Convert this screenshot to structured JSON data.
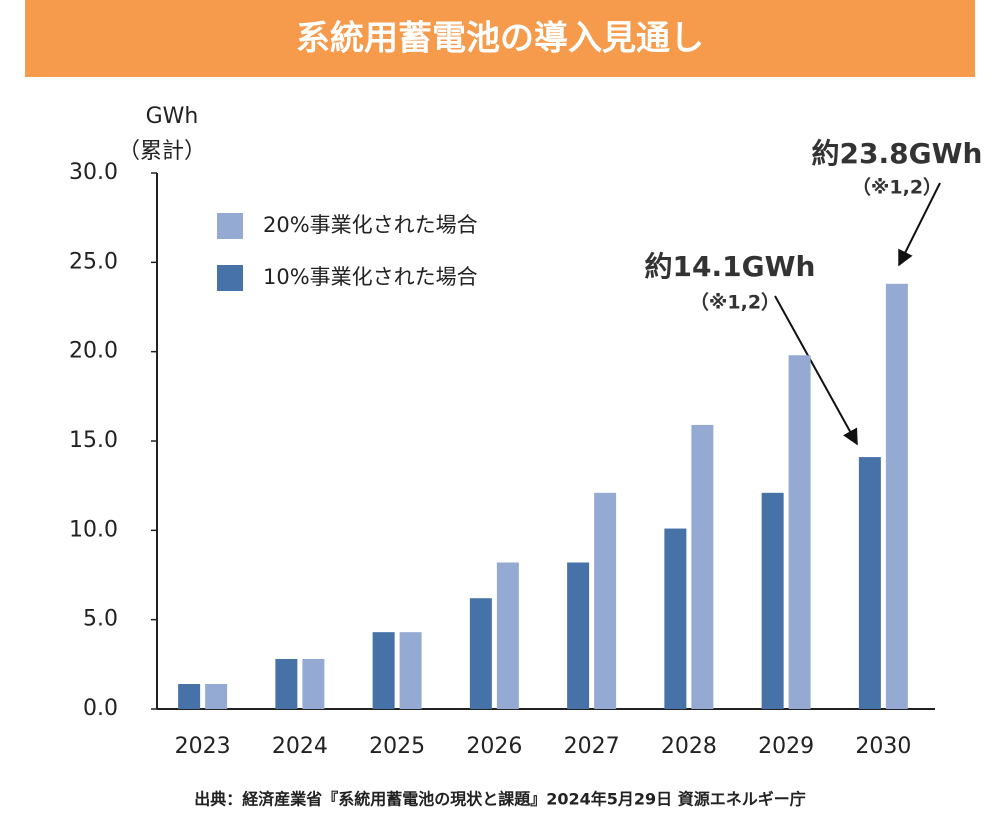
{
  "chart_data": {
    "type": "bar",
    "title": "系統用蓄電池の導入見通し",
    "y_axis_label": [
      "GWh",
      "（累計）"
    ],
    "categories": [
      "2023",
      "2024",
      "2025",
      "2026",
      "2027",
      "2028",
      "2029",
      "2030"
    ],
    "series": [
      {
        "name": "20%事業化された場合",
        "color": "#95aad3",
        "values": [
          1.4,
          2.8,
          4.3,
          8.2,
          12.1,
          15.9,
          19.8,
          23.8
        ]
      },
      {
        "name": "10%事業化された場合",
        "color": "#4672a8",
        "values": [
          1.4,
          2.8,
          4.3,
          6.2,
          8.2,
          10.1,
          12.1,
          14.1
        ]
      }
    ],
    "ylim": [
      0,
      30
    ],
    "yticks": [
      {
        "value": 0,
        "label": "0.0"
      },
      {
        "value": 5,
        "label": "5.0"
      },
      {
        "value": 10,
        "label": "10.0"
      },
      {
        "value": 15,
        "label": "15.0"
      },
      {
        "value": 20,
        "label": "20.0"
      },
      {
        "value": 25,
        "label": "25.0"
      },
      {
        "value": 30,
        "label": "30.0"
      }
    ],
    "grid": false,
    "legend_position": "top-left",
    "annotations": [
      {
        "text": "約14.1GWh",
        "note": "（※1,2）"
      },
      {
        "text": "約23.8GWh",
        "note": "（※1,2）"
      }
    ],
    "source": "出典：経済産業省『系統用蓄電池の現状と課題』2024年5月29日 資源エネルギー庁"
  }
}
